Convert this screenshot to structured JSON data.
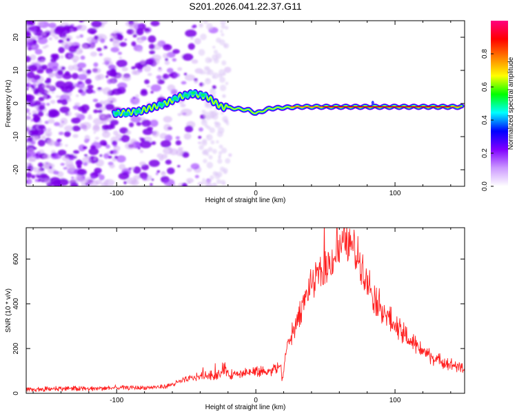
{
  "title": "S201.2026.041.22.37.G11",
  "chart_data": [
    {
      "type": "heatmap",
      "xlabel": "Height of straight line (km)",
      "ylabel": "Frequency (Hz)",
      "xlim": [
        -165,
        150
      ],
      "ylim": [
        -25,
        25
      ],
      "xticks": [
        -100,
        0,
        100
      ],
      "yticks": [
        -20,
        -10,
        0,
        10,
        20
      ],
      "colorbar": {
        "label": "Normalized spectral amplitude",
        "range": [
          0,
          1
        ],
        "ticks": [
          0.0,
          0.2,
          0.4,
          0.6,
          0.8
        ],
        "colormap": [
          "#ffffff",
          "#cc99ff",
          "#8000ff",
          "#0000ff",
          "#00ffff",
          "#00ff00",
          "#ffff00",
          "#ff8000",
          "#ff0000",
          "#ff0080"
        ]
      },
      "ridge_track": [
        {
          "x": -102,
          "f": -3
        },
        {
          "x": -85,
          "f": -2.5
        },
        {
          "x": -65,
          "f": 0
        },
        {
          "x": -55,
          "f": 2
        },
        {
          "x": -45,
          "f": 3
        },
        {
          "x": -35,
          "f": 2
        },
        {
          "x": -25,
          "f": -1
        },
        {
          "x": -15,
          "f": -1.5
        },
        {
          "x": -5,
          "f": -2
        },
        {
          "x": 0,
          "f": -3
        },
        {
          "x": 10,
          "f": -1.5
        },
        {
          "x": 30,
          "f": -1
        },
        {
          "x": 60,
          "f": -1
        },
        {
          "x": 100,
          "f": -1
        },
        {
          "x": 148,
          "f": -1
        }
      ],
      "noise_region_x": [
        -165,
        -40
      ]
    },
    {
      "type": "line",
      "xlabel": "Height of straight line (km)",
      "ylabel": "SNR (10 * v/v)",
      "xlim": [
        -165,
        150
      ],
      "ylim": [
        0,
        740
      ],
      "xticks": [
        -100,
        0,
        100
      ],
      "yticks": [
        0,
        200,
        400,
        600
      ],
      "color": "#ff0000",
      "series": [
        {
          "name": "SNR",
          "x": [
            -165,
            -140,
            -120,
            -100,
            -80,
            -65,
            -55,
            -45,
            -35,
            -25,
            -22,
            -20,
            -10,
            0,
            10,
            18,
            19,
            22,
            30,
            35,
            40,
            50,
            60,
            65,
            70,
            75,
            85,
            100,
            110,
            120,
            130,
            140,
            150
          ],
          "y": [
            15,
            22,
            20,
            25,
            25,
            30,
            50,
            70,
            80,
            80,
            120,
            80,
            95,
            95,
            100,
            120,
            55,
            200,
            330,
            420,
            490,
            560,
            640,
            680,
            650,
            590,
            430,
            300,
            240,
            190,
            150,
            130,
            110
          ]
        }
      ]
    }
  ]
}
